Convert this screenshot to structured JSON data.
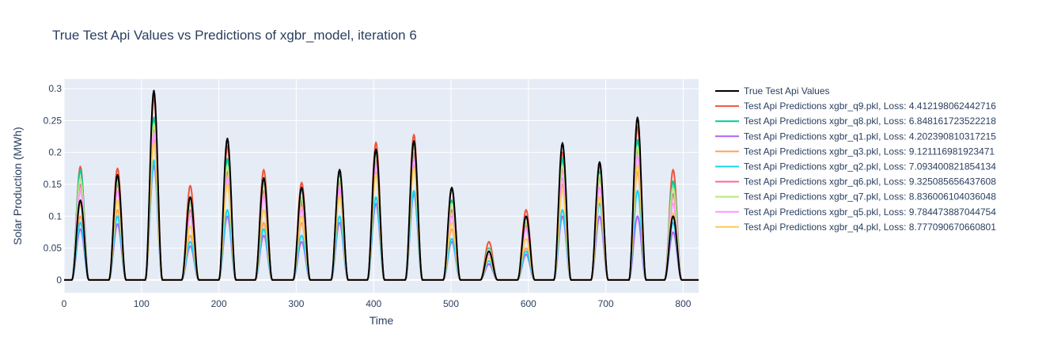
{
  "chart_data": {
    "type": "line",
    "title": "True Test Api Values vs Predictions of xgbr_model, iteration 6",
    "xlabel": "Time",
    "ylabel": "Solar Production (MWh)",
    "xlim": [
      0,
      820
    ],
    "ylim": [
      -0.02,
      0.315
    ],
    "xticks": [
      0,
      100,
      200,
      300,
      400,
      500,
      600,
      700,
      800
    ],
    "yticks": [
      0,
      0.05,
      0.1,
      0.15,
      0.2,
      0.25,
      0.3
    ],
    "ytick_labels": [
      "0",
      "0.05",
      "0.1",
      "0.15",
      "0.2",
      "0.25",
      "0.3"
    ],
    "grid": true,
    "legend_position": "right",
    "plot_bg": "#e5ecf6",
    "day_centers": [
      21,
      69,
      116,
      163,
      211,
      258,
      307,
      356,
      403,
      452,
      501,
      549,
      597,
      644,
      692,
      741,
      787
    ],
    "series": [
      {
        "name": "True Test Api Values",
        "color": "#000000",
        "peaks": [
          0.125,
          0.165,
          0.297,
          0.13,
          0.222,
          0.16,
          0.145,
          0.173,
          0.205,
          0.218,
          0.145,
          0.045,
          0.1,
          0.215,
          0.185,
          0.255,
          0.1
        ]
      },
      {
        "name": "Test Api Predictions xgbr_q9.pkl, Loss: 4.412198062442716",
        "color": "#EF553B",
        "peaks": [
          0.178,
          0.175,
          0.287,
          0.148,
          0.21,
          0.173,
          0.153,
          0.17,
          0.216,
          0.228,
          0.143,
          0.06,
          0.11,
          0.2,
          0.18,
          0.24,
          0.173
        ]
      },
      {
        "name": "Test Api Predictions xgbr_q8.pkl, Loss: 6.848161723522218",
        "color": "#00cc96",
        "peaks": [
          0.173,
          0.16,
          0.255,
          0.12,
          0.19,
          0.16,
          0.125,
          0.165,
          0.2,
          0.215,
          0.125,
          0.05,
          0.09,
          0.19,
          0.17,
          0.22,
          0.155
        ]
      },
      {
        "name": "Test Api Predictions xgbr_q1.pkl, Loss: 4.202390810317215",
        "color": "#ab63fa",
        "peaks": [
          0.08,
          0.088,
          0.18,
          0.053,
          0.1,
          0.07,
          0.06,
          0.09,
          0.12,
          0.135,
          0.06,
          0.025,
          0.04,
          0.1,
          0.1,
          0.1,
          0.075
        ]
      },
      {
        "name": "Test Api Predictions xgbr_q3.pkl, Loss: 9.121116981923471",
        "color": "#FFA15A",
        "peaks": [
          0.1,
          0.11,
          0.22,
          0.07,
          0.16,
          0.09,
          0.09,
          0.14,
          0.17,
          0.18,
          0.08,
          0.035,
          0.05,
          0.15,
          0.13,
          0.17,
          0.09
        ]
      },
      {
        "name": "Test Api Predictions xgbr_q2.pkl, Loss: 7.093400821854134",
        "color": "#19d3f3",
        "peaks": [
          0.09,
          0.1,
          0.188,
          0.06,
          0.11,
          0.08,
          0.07,
          0.1,
          0.13,
          0.14,
          0.065,
          0.03,
          0.045,
          0.11,
          0.12,
          0.14,
          0.09
        ]
      },
      {
        "name": "Test Api Predictions xgbr_q6.pkl, Loss: 9.325085656437608",
        "color": "#FF6692",
        "peaks": [
          0.15,
          0.15,
          0.235,
          0.11,
          0.17,
          0.14,
          0.12,
          0.155,
          0.19,
          0.2,
          0.11,
          0.045,
          0.085,
          0.175,
          0.16,
          0.205,
          0.135
        ]
      },
      {
        "name": "Test Api Predictions xgbr_q7.pkl, Loss: 8.836006104036048",
        "color": "#B6E880",
        "peaks": [
          0.16,
          0.155,
          0.245,
          0.12,
          0.18,
          0.15,
          0.13,
          0.16,
          0.195,
          0.21,
          0.12,
          0.048,
          0.09,
          0.18,
          0.165,
          0.21,
          0.145
        ]
      },
      {
        "name": "Test Api Predictions xgbr_q5.pkl, Loss: 9.784473887044754",
        "color": "#FF97FF",
        "peaks": [
          0.14,
          0.14,
          0.23,
          0.1,
          0.16,
          0.13,
          0.11,
          0.145,
          0.18,
          0.19,
          0.1,
          0.04,
          0.08,
          0.16,
          0.145,
          0.195,
          0.12
        ]
      },
      {
        "name": "Test Api Predictions xgbr_q4.pkl, Loss: 8.777090670660801",
        "color": "#FECB52",
        "peaks": [
          0.12,
          0.125,
          0.215,
          0.085,
          0.15,
          0.11,
          0.1,
          0.13,
          0.165,
          0.175,
          0.09,
          0.035,
          0.065,
          0.14,
          0.13,
          0.18,
          0.105
        ]
      }
    ]
  }
}
